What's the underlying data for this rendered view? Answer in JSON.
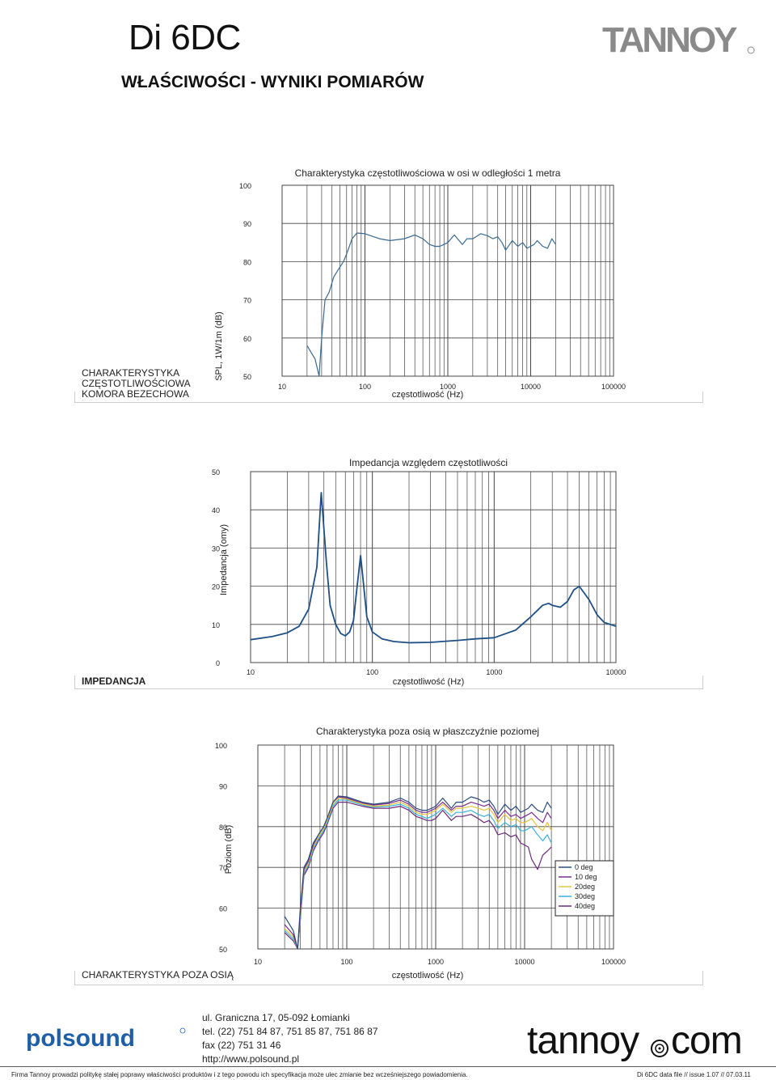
{
  "header": {
    "model": "Di 6DC",
    "subtitle": "WŁAŚCIWOŚCI - WYNIKI POMIARÓW",
    "brand": "TANNOY"
  },
  "sections": [
    {
      "label": "CHARAKTERYSTYKA CZĘSTOTLIWOŚCIOWA KOMORA BEZECHOWA"
    },
    {
      "label": "IMPEDANCJA"
    },
    {
      "label": "CHARAKTERYSTYKA POZA OSIĄ"
    }
  ],
  "chart_data": [
    {
      "type": "line",
      "title": "Charakterystyka częstotliwościowa w osi w odległości 1 metra",
      "xlabel": "częstotliwość (Hz)",
      "ylabel": "SPL, 1W/1m (dB)",
      "x_scale": "log",
      "xlim": [
        10,
        100000
      ],
      "ylim": [
        50,
        100
      ],
      "x_ticks": [
        "10",
        "100",
        "1000",
        "10000",
        "100000"
      ],
      "y_ticks": [
        "100",
        "90",
        "80",
        "70",
        "60",
        "50"
      ],
      "grid": true,
      "series": [
        {
          "color": "#3a6a92",
          "x": [
            20,
            25,
            28,
            30,
            33,
            37,
            42,
            48,
            55,
            60,
            70,
            80,
            100,
            150,
            200,
            300,
            400,
            500,
            600,
            700,
            800,
            900,
            1000,
            1200,
            1500,
            1700,
            2000,
            2500,
            3000,
            3500,
            4000,
            4500,
            5000,
            6000,
            7000,
            8000,
            9000,
            10000,
            11000,
            12000,
            14000,
            16000,
            18000,
            20000
          ],
          "y": [
            58,
            54.5,
            50,
            60,
            70,
            72,
            76,
            78,
            80,
            82,
            86,
            87.5,
            87.3,
            86,
            85.5,
            86,
            87,
            86,
            84.5,
            84,
            84,
            84.5,
            85,
            87,
            84.5,
            86,
            86,
            87.3,
            86.8,
            86,
            86.5,
            85,
            83,
            85.5,
            84,
            85,
            83.5,
            84,
            84.5,
            85.5,
            84,
            83.5,
            86,
            84.5
          ]
        }
      ]
    },
    {
      "type": "line",
      "title": "Impedancja względem częstotliwości",
      "xlabel": "częstotliwość (Hz)",
      "ylabel": "Impedancja (omy)",
      "x_scale": "log",
      "xlim": [
        10,
        10000
      ],
      "ylim": [
        0,
        50
      ],
      "x_ticks": [
        "10",
        "100",
        "1000",
        "10000"
      ],
      "y_ticks": [
        "50",
        "40",
        "30",
        "20",
        "10",
        "0"
      ],
      "grid": true,
      "series": [
        {
          "color": "#1e4f86",
          "x": [
            10,
            15,
            20,
            25,
            30,
            35,
            38,
            42,
            45,
            50,
            55,
            60,
            65,
            70,
            75,
            80,
            85,
            90,
            100,
            120,
            150,
            200,
            300,
            500,
            700,
            1000,
            1500,
            2000,
            2500,
            2800,
            3000,
            3500,
            4000,
            4500,
            5000,
            6000,
            7000,
            8000,
            10000
          ],
          "y": [
            6,
            6.8,
            7.8,
            9.5,
            14,
            25,
            44.5,
            26,
            15,
            10,
            7.6,
            7,
            8,
            11,
            20,
            28,
            20,
            12,
            8,
            6.2,
            5.5,
            5.2,
            5.3,
            5.8,
            6.2,
            6.5,
            8.5,
            12,
            15,
            15.5,
            15,
            14.5,
            16,
            19,
            20,
            16.5,
            12.5,
            10.5,
            9.5
          ]
        }
      ]
    },
    {
      "type": "line",
      "title": "Charakterystyka poza osią w płaszczyźnie poziomej",
      "xlabel": "częstotliwość (Hz)",
      "ylabel": "Poziom (dB)",
      "x_scale": "log",
      "xlim": [
        10,
        100000
      ],
      "ylim": [
        50,
        100
      ],
      "x_ticks": [
        "10",
        "100",
        "1000",
        "10000",
        "100000"
      ],
      "y_ticks": [
        "100",
        "90",
        "80",
        "70",
        "60",
        "50"
      ],
      "grid": true,
      "legend": "right",
      "series": [
        {
          "name": "0 deg",
          "color": "#2b4c7e",
          "x": [
            20,
            25,
            28,
            30,
            33,
            37,
            42,
            48,
            55,
            60,
            70,
            80,
            100,
            150,
            200,
            300,
            400,
            500,
            600,
            700,
            800,
            900,
            1000,
            1200,
            1500,
            1700,
            2000,
            2500,
            3000,
            3500,
            4000,
            4500,
            5000,
            6000,
            7000,
            8000,
            9000,
            10000,
            11000,
            12000,
            14000,
            16000,
            18000,
            20000
          ],
          "y": [
            58,
            54.5,
            50,
            60,
            70,
            72,
            76,
            78,
            80,
            82,
            86,
            87.5,
            87.3,
            86,
            85.5,
            86,
            87,
            86,
            84.5,
            84,
            84,
            84.5,
            85,
            87,
            84.5,
            86,
            86,
            87.3,
            86.8,
            86,
            86.5,
            85,
            83,
            85.5,
            84,
            85,
            83.5,
            84,
            84.5,
            85.5,
            84,
            83.5,
            86,
            84.5
          ]
        },
        {
          "name": "10 deg",
          "color": "#7a2e8e",
          "x": [
            20,
            25,
            28,
            30,
            33,
            37,
            42,
            48,
            55,
            60,
            70,
            80,
            100,
            150,
            200,
            300,
            400,
            500,
            600,
            700,
            800,
            900,
            1000,
            1200,
            1500,
            1700,
            2000,
            2500,
            3000,
            3500,
            4000,
            4500,
            5000,
            6000,
            7000,
            8000,
            9000,
            10000,
            11000,
            12000,
            14000,
            16000,
            18000,
            20000
          ],
          "y": [
            56,
            53.5,
            50,
            59,
            69.5,
            71.5,
            75.5,
            78,
            80,
            82,
            86,
            87.3,
            87,
            85.8,
            85.3,
            85.7,
            86.5,
            85.5,
            84,
            83.5,
            83.5,
            84,
            84.5,
            86,
            84,
            85,
            85,
            86,
            85.5,
            85,
            85.5,
            84,
            82,
            84,
            82.5,
            83,
            82,
            82.5,
            83,
            83.5,
            82,
            81,
            83.5,
            82
          ]
        },
        {
          "name": "20deg",
          "color": "#e6c43a",
          "x": [
            20,
            25,
            28,
            30,
            33,
            37,
            42,
            48,
            55,
            60,
            70,
            80,
            100,
            150,
            200,
            300,
            400,
            500,
            600,
            700,
            800,
            900,
            1000,
            1200,
            1500,
            1700,
            2000,
            2500,
            3000,
            3500,
            4000,
            4500,
            5000,
            6000,
            7000,
            8000,
            9000,
            10000,
            11000,
            12000,
            14000,
            16000,
            18000,
            20000
          ],
          "y": [
            55,
            53,
            50,
            58,
            69,
            71,
            75,
            77.5,
            79.5,
            81.5,
            85.5,
            87,
            86.8,
            85.5,
            85,
            85.3,
            86,
            85,
            83.5,
            83,
            83,
            83.5,
            84,
            85.5,
            83.5,
            84.5,
            84.5,
            85,
            84.5,
            84,
            84.5,
            83,
            81,
            83,
            81.5,
            82,
            81,
            81,
            81.5,
            82,
            80,
            79,
            81,
            79
          ]
        },
        {
          "name": "30deg",
          "color": "#3ab0d8",
          "x": [
            20,
            25,
            28,
            30,
            33,
            37,
            42,
            48,
            55,
            60,
            70,
            80,
            100,
            150,
            200,
            300,
            400,
            500,
            600,
            700,
            800,
            900,
            1000,
            1200,
            1500,
            1700,
            2000,
            2500,
            3000,
            3500,
            4000,
            4500,
            5000,
            6000,
            7000,
            8000,
            9000,
            10000,
            11000,
            12000,
            14000,
            16000,
            18000,
            20000
          ],
          "y": [
            54.5,
            52.5,
            50,
            57.5,
            68.5,
            70.5,
            74.5,
            77,
            79,
            81,
            85,
            86.5,
            86.5,
            85.3,
            84.8,
            85,
            85.5,
            84.5,
            83,
            82.5,
            82,
            82.5,
            83,
            84.5,
            82.5,
            83.5,
            83.5,
            84,
            83,
            82.5,
            83,
            81.5,
            79.5,
            81,
            80,
            80.5,
            79,
            79,
            79.5,
            80,
            78,
            76.5,
            78,
            76
          ]
        },
        {
          "name": "40deg",
          "color": "#6a2a7a",
          "x": [
            20,
            25,
            28,
            30,
            33,
            37,
            42,
            48,
            55,
            60,
            70,
            80,
            100,
            150,
            200,
            300,
            400,
            500,
            600,
            700,
            800,
            900,
            1000,
            1200,
            1500,
            1700,
            2000,
            2500,
            3000,
            3500,
            4000,
            4500,
            5000,
            6000,
            7000,
            8000,
            9000,
            10000,
            11000,
            12000,
            14000,
            16000,
            18000,
            20000
          ],
          "y": [
            54,
            52,
            50,
            57,
            68,
            70,
            74,
            76.5,
            78.5,
            80.5,
            84.5,
            86,
            86,
            85,
            84.5,
            84.5,
            85,
            84,
            82.5,
            82,
            81.5,
            81.5,
            82,
            84,
            81.5,
            82.5,
            82.5,
            83,
            82,
            81,
            81.5,
            80,
            78,
            78.5,
            77.5,
            78,
            76,
            75.5,
            75,
            72,
            69.5,
            73,
            74,
            75
          ]
        }
      ]
    }
  ],
  "footer": {
    "distributor": "polsound",
    "address_lines": [
      "ul. Graniczna 17, 05-092 Łomianki",
      "tel. (22) 751 84 87, 751 85 87, 751 86 87",
      "fax (22) 751 31 46",
      "http://www.polsound.pl"
    ],
    "website_a": "tannoy",
    "website_b": "com",
    "disclaimer": "Firma Tannoy prowadzi politykę stałej poprawy właściwości produktów i z tego powodu ich specyfikacja może ulec zmianie bez wcześniejszego powiadomienia.",
    "doc_ref": "Di 6DC data file // issue 1.07 // 07.03.11"
  },
  "colors": {
    "grid": "#444444",
    "brand_grey": "#8a8a8a",
    "distributor_blue": "#1f5fa8"
  }
}
